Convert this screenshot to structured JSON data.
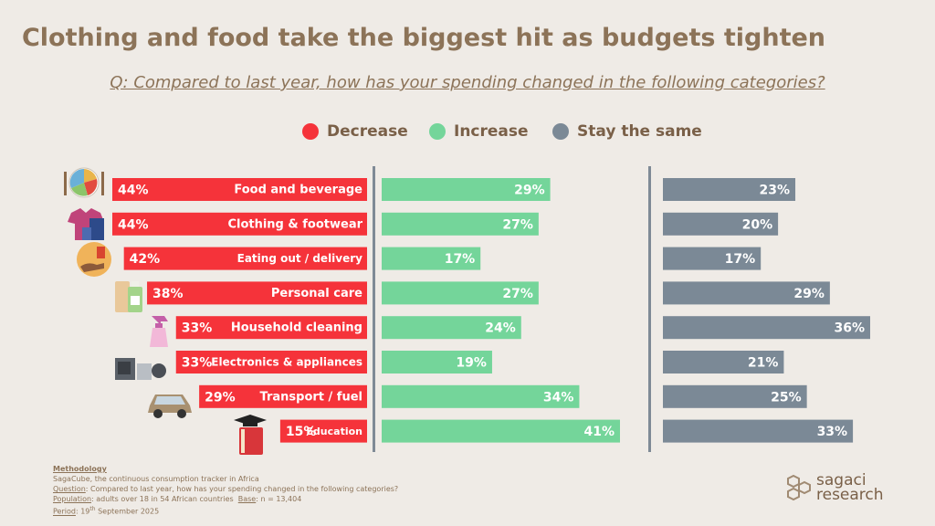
{
  "title": "Clothing and food take the biggest hit as budgets tighten",
  "question_label": "Q: Compared to last year, how has your spending changed in the following categories?",
  "legend": [
    {
      "label": "Decrease",
      "color": "#f5333a"
    },
    {
      "label": "Increase",
      "color": "#74d59a"
    },
    {
      "label": "Stay the same",
      "color": "#7b8996"
    }
  ],
  "chart_data": {
    "type": "bar",
    "orientation": "horizontal",
    "title": "Clothing and food take the biggest hit as budgets tighten",
    "categories": [
      "Food and beverage",
      "Clothing & footwear",
      "Eating out / delivery",
      "Personal care",
      "Household cleaning",
      "Electronics & appliances",
      "Transport / fuel",
      "Education"
    ],
    "series": [
      {
        "name": "Decrease",
        "color": "#f5333a",
        "values": [
          44,
          44,
          42,
          38,
          33,
          33,
          29,
          15
        ]
      },
      {
        "name": "Increase",
        "color": "#74d59a",
        "values": [
          29,
          27,
          17,
          27,
          24,
          19,
          34,
          41
        ]
      },
      {
        "name": "Stay the same",
        "color": "#7b8996",
        "values": [
          23,
          20,
          17,
          29,
          36,
          21,
          25,
          33
        ]
      }
    ],
    "unit": "%"
  },
  "methodology": {
    "heading": "Methodology",
    "line1": "SagaCube, the continuous consumption tracker in Africa",
    "question_key": "Question",
    "question_text": ": Compared to last year, how has your spending changed in the following categories?",
    "population_key": "Population",
    "population_text": ": adults over 18 in 54 African countries",
    "base_key": "Base",
    "base_text": ": n = 13,404",
    "period_key": "Period",
    "period_day": ": 19",
    "period_sup": "th",
    "period_rest": " September 2025"
  },
  "brand": {
    "line1": "sagaci",
    "line2": "research"
  },
  "icons": [
    "plate-icon",
    "shirt-icon",
    "delivery-icon",
    "lotion-icon",
    "spray-bottle-icon",
    "appliances-icon",
    "car-icon",
    "graduation-book-icon"
  ]
}
